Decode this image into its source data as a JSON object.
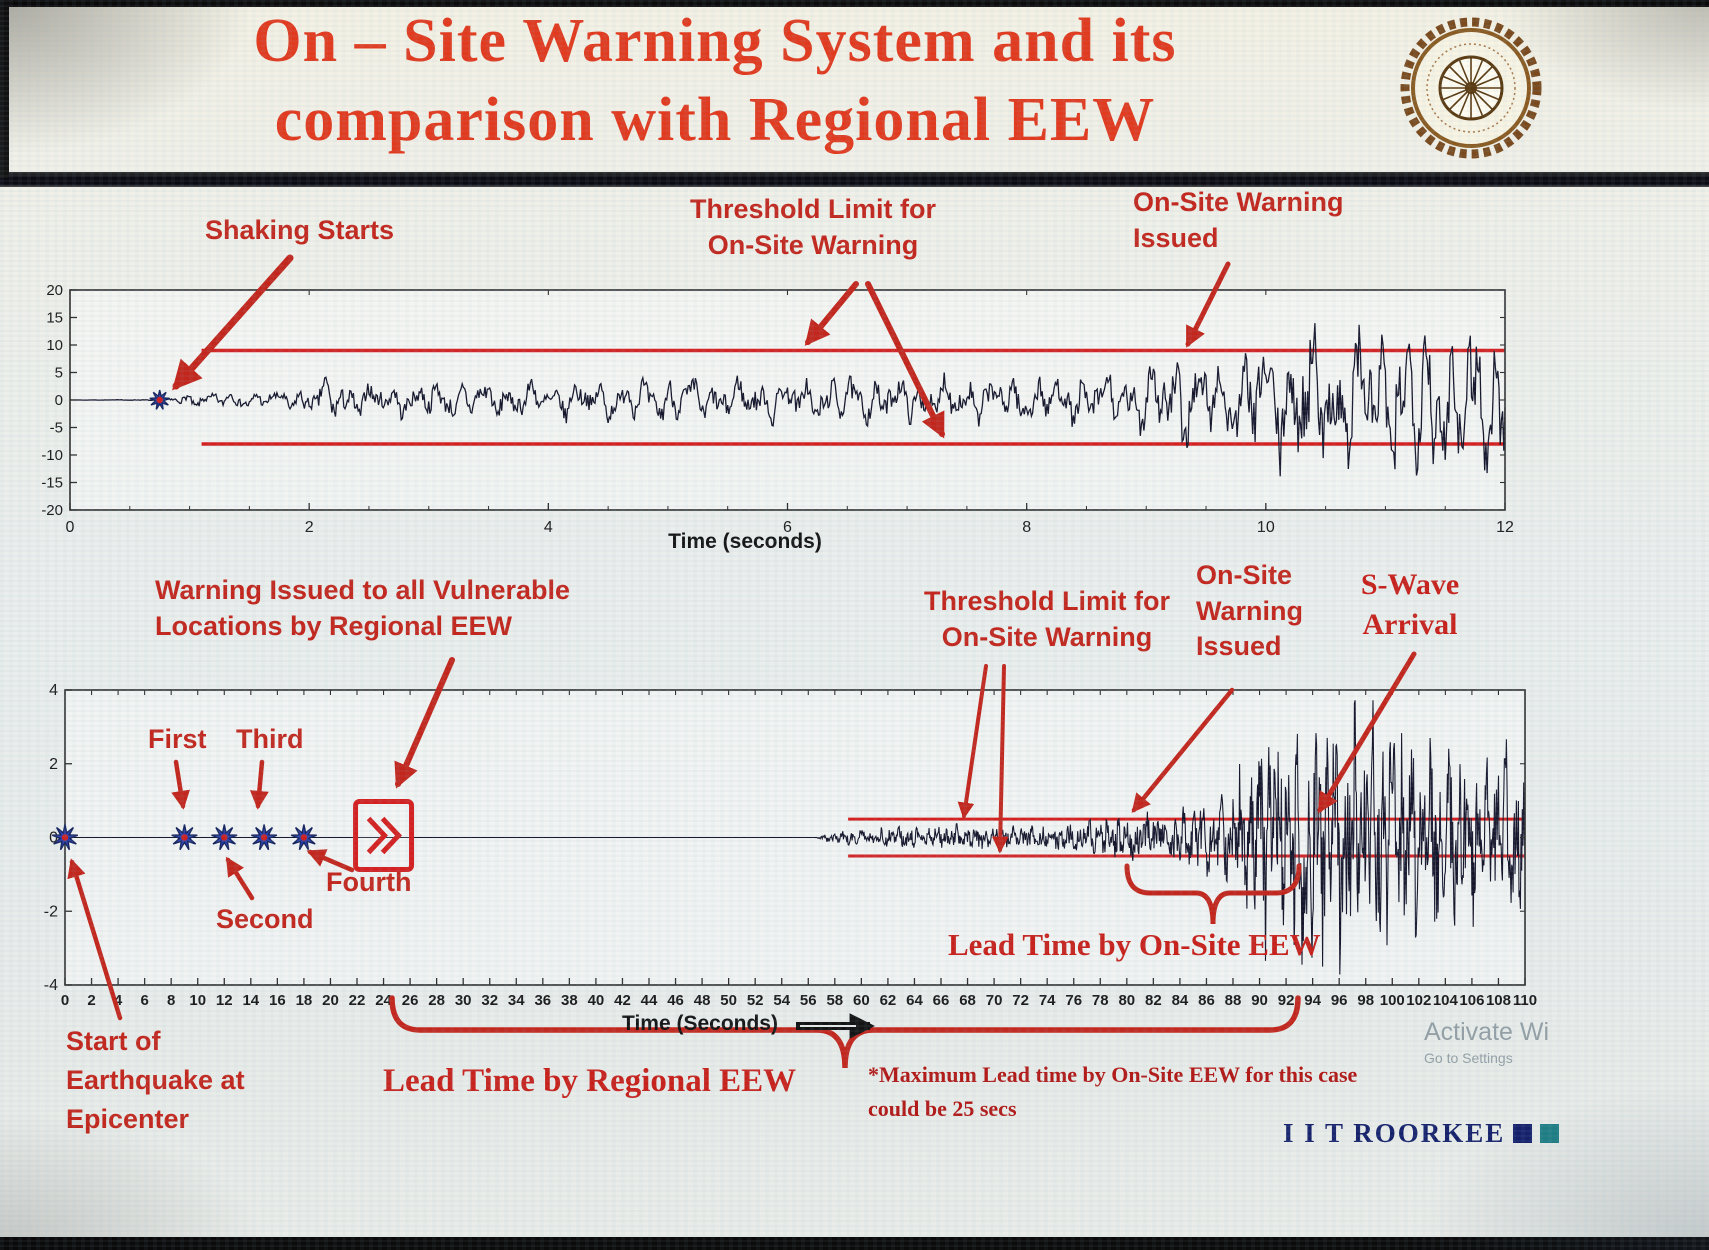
{
  "slide": {
    "title_line1": "On – Site Warning System and its",
    "title_line2": "comparison with Regional EEW",
    "footer_brand": "I I T ROORKEE",
    "watermark": {
      "line1": "Activate Wi",
      "line2": "Go to Settings"
    }
  },
  "colors": {
    "title_red": "#e23a1e",
    "annotation_red": "#c3261c",
    "lead_red": "#c8201a",
    "note_red": "#b21815",
    "threshold_red": "#d42020",
    "waveform_dark": "#15152b",
    "star_blue": "#2b3faf",
    "star_center_red": "#cc1f1f",
    "brand_navy": "#15216b",
    "brand_teal": "#1f7f86",
    "watermark_gray": "#7f8d95",
    "axis_dark": "#2e2e2e"
  },
  "top_section": {
    "annotations": {
      "shaking_starts": "Shaking Starts",
      "threshold_line1": "Threshold Limit for",
      "threshold_line2": "On-Site Warning",
      "warning_issued_line1": "On-Site Warning",
      "warning_issued_line2": "Issued"
    },
    "xlabel": "Time (seconds)"
  },
  "bottom_section": {
    "annotations": {
      "regional_line1": "Warning Issued to all Vulnerable",
      "regional_line2": "Locations by Regional EEW",
      "threshold_line1": "Threshold Limit for",
      "threshold_line2": "On-Site Warning",
      "onsite_line1": "On-Site",
      "onsite_line2": "Warning",
      "onsite_line3": "Issued",
      "swave_line1": "S-Wave",
      "swave_line2": "Arrival",
      "first": "First",
      "second": "Second",
      "third": "Third",
      "fourth": "Fourth",
      "epicenter_line1": "Start of",
      "epicenter_line2": "Earthquake at",
      "epicenter_line3": "Epicenter",
      "lead_onsite": "Lead Time by On-Site EEW",
      "lead_regional": "Lead Time by Regional EEW",
      "note_line1": "*Maximum Lead time by On-Site EEW for this case",
      "note_line2": "could be 25 secs"
    },
    "xlabel": "Time (Seconds)"
  },
  "chart_data": [
    {
      "type": "line",
      "title": "On-site warning seismogram (single station acceleration record)",
      "xlabel": "Time (seconds)",
      "ylabel": "",
      "xlim": [
        0,
        12
      ],
      "ylim": [
        -20,
        20
      ],
      "xticks": [
        0,
        2,
        4,
        6,
        8,
        10,
        12
      ],
      "yticks": [
        20,
        15,
        10,
        5,
        0,
        -5,
        -10,
        -15,
        -20
      ],
      "grid": false,
      "threshold_upper": 9,
      "threshold_lower": -8,
      "threshold_start_time": 1.1,
      "events": {
        "shaking_starts_time": 0.75,
        "onsite_warning_issued_time": 9.3
      },
      "envelope": [
        [
          0,
          0
        ],
        [
          0.72,
          0.1
        ],
        [
          1,
          1.2
        ],
        [
          1.8,
          1.6
        ],
        [
          2.2,
          3.8
        ],
        [
          2.6,
          2.6
        ],
        [
          3,
          3.0
        ],
        [
          3.6,
          3.3
        ],
        [
          4.2,
          3.1
        ],
        [
          5,
          3.8
        ],
        [
          5.6,
          3.4
        ],
        [
          6.2,
          3.9
        ],
        [
          7,
          3.6
        ],
        [
          7.6,
          4.2
        ],
        [
          8.2,
          4.0
        ],
        [
          8.8,
          4.6
        ],
        [
          9.2,
          8.5
        ],
        [
          9.6,
          6.5
        ],
        [
          10,
          10
        ],
        [
          10.4,
          14
        ],
        [
          10.8,
          11
        ],
        [
          11.2,
          16
        ],
        [
          11.6,
          13
        ],
        [
          12,
          15
        ]
      ],
      "synth": {
        "dt": 0.01,
        "freqs": [
          5.2,
          8.7,
          2.3
        ],
        "noise": 0.5,
        "seed": 7
      }
    },
    {
      "type": "line",
      "title": "Regional EEW vs on-site EEW timeline seismogram",
      "xlabel": "Time (Seconds)",
      "ylabel": "",
      "xlim": [
        0,
        110
      ],
      "ylim": [
        -4,
        4
      ],
      "xticks": [
        0,
        2,
        4,
        6,
        8,
        10,
        12,
        14,
        16,
        18,
        20,
        22,
        24,
        26,
        28,
        30,
        32,
        34,
        36,
        38,
        40,
        42,
        44,
        46,
        48,
        50,
        52,
        54,
        56,
        58,
        60,
        62,
        64,
        66,
        68,
        70,
        72,
        74,
        76,
        78,
        80,
        82,
        84,
        86,
        88,
        90,
        92,
        94,
        96,
        98,
        100,
        102,
        104,
        106,
        108,
        110
      ],
      "yticks": [
        4,
        2,
        0,
        -2,
        -4
      ],
      "grid": false,
      "threshold_upper": 0.5,
      "threshold_lower": -0.5,
      "threshold_start_time": 59,
      "events": {
        "epicenter_time": 0,
        "p_detections": [
          9,
          12,
          15,
          18
        ],
        "regional_warning_time": 24,
        "onsite_warning_issued_time": 80,
        "s_wave_arrival_time": 93
      },
      "envelope": [
        [
          0,
          0
        ],
        [
          56.5,
          0
        ],
        [
          57.5,
          0.1
        ],
        [
          59,
          0.16
        ],
        [
          62,
          0.2
        ],
        [
          66,
          0.22
        ],
        [
          70,
          0.24
        ],
        [
          74,
          0.24
        ],
        [
          78,
          0.35
        ],
        [
          80,
          0.5
        ],
        [
          82,
          0.55
        ],
        [
          84,
          0.6
        ],
        [
          86,
          0.7
        ],
        [
          88,
          1.0
        ],
        [
          89.5,
          1.7
        ],
        [
          91,
          2.2
        ],
        [
          93,
          2.6
        ],
        [
          94.5,
          2.2
        ],
        [
          96,
          2.5
        ],
        [
          98,
          2.1
        ],
        [
          100,
          2.3
        ],
        [
          102,
          1.9
        ],
        [
          104,
          2.0
        ],
        [
          106,
          1.7
        ],
        [
          108,
          1.8
        ],
        [
          110,
          1.5
        ]
      ],
      "synth": {
        "dt": 0.05,
        "freqs": [
          1.4,
          2.3,
          0.7
        ],
        "noise": 0.85,
        "seed": 13
      }
    }
  ]
}
